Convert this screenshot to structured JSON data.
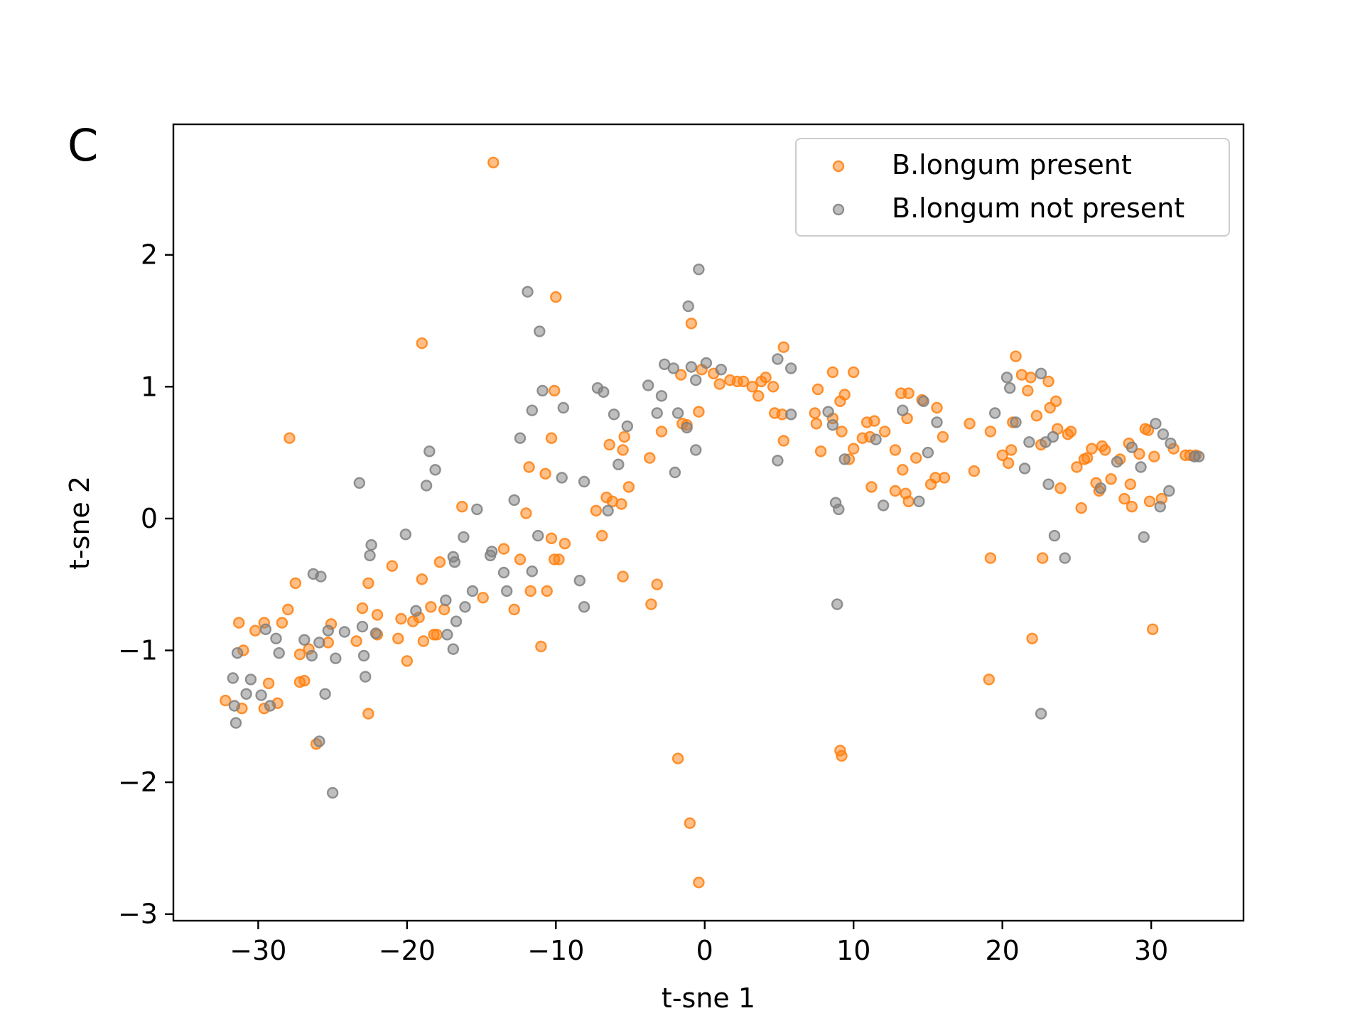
{
  "panel_label": "C",
  "chart_data": {
    "type": "scatter",
    "title": "",
    "xlabel": "t-sne 1",
    "ylabel": "t-sne 2",
    "xlim": [
      -35.7,
      36.2
    ],
    "ylim": [
      -3.05,
      2.99
    ],
    "xticks": [
      -30,
      -20,
      -10,
      0,
      10,
      20,
      30
    ],
    "xtick_labels": [
      "−30",
      "−20",
      "−10",
      "0",
      "10",
      "20",
      "30"
    ],
    "yticks": [
      -3,
      -2,
      -1,
      0,
      1,
      2
    ],
    "ytick_labels": [
      "−3",
      "−2",
      "−1",
      "0",
      "1",
      "2"
    ],
    "grid": false,
    "legend_position": "top-right",
    "series": [
      {
        "name": "B.longum present",
        "color": "#ff7f0e",
        "points": [
          [
            -14.2,
            2.7
          ],
          [
            -19.0,
            1.33
          ],
          [
            -10.0,
            1.68
          ],
          [
            -10.1,
            0.97
          ],
          [
            -0.9,
            1.48
          ],
          [
            -27.9,
            0.61
          ],
          [
            -27.5,
            -0.49
          ],
          [
            -28.0,
            -0.69
          ],
          [
            -28.4,
            -0.79
          ],
          [
            -29.6,
            -0.79
          ],
          [
            -30.2,
            -0.85
          ],
          [
            -31.3,
            -0.79
          ],
          [
            -31.0,
            -1.0
          ],
          [
            -27.2,
            -1.03
          ],
          [
            -26.6,
            -0.99
          ],
          [
            -26.9,
            -1.23
          ],
          [
            -27.2,
            -1.24
          ],
          [
            -29.6,
            -1.44
          ],
          [
            -29.3,
            -1.25
          ],
          [
            -28.7,
            -1.4
          ],
          [
            -31.1,
            -1.44
          ],
          [
            -32.2,
            -1.38
          ],
          [
            -26.1,
            -1.71
          ],
          [
            -23.4,
            -0.93
          ],
          [
            -23.0,
            -0.68
          ],
          [
            -22.6,
            -0.49
          ],
          [
            -22.0,
            -0.73
          ],
          [
            -22.0,
            -0.88
          ],
          [
            -22.6,
            -1.48
          ],
          [
            -25.1,
            -0.8
          ],
          [
            -25.3,
            -0.94
          ],
          [
            -21.0,
            -0.36
          ],
          [
            -20.6,
            -0.91
          ],
          [
            -20.0,
            -1.08
          ],
          [
            -19.6,
            -0.78
          ],
          [
            -19.0,
            -0.46
          ],
          [
            -18.9,
            -0.93
          ],
          [
            -18.4,
            -0.67
          ],
          [
            -18.2,
            -0.88
          ],
          [
            -17.8,
            -0.33
          ],
          [
            -17.5,
            -0.69
          ],
          [
            -18.0,
            -0.88
          ],
          [
            -20.4,
            -0.76
          ],
          [
            -19.2,
            -0.75
          ],
          [
            -16.3,
            0.09
          ],
          [
            -14.9,
            -0.6
          ],
          [
            -13.5,
            -0.23
          ],
          [
            -12.8,
            -0.69
          ],
          [
            -12.4,
            -0.31
          ],
          [
            -12.0,
            0.04
          ],
          [
            -11.8,
            0.39
          ],
          [
            -11.7,
            -0.55
          ],
          [
            -10.7,
            0.34
          ],
          [
            -10.3,
            0.61
          ],
          [
            -10.3,
            -0.15
          ],
          [
            -10.1,
            -0.31
          ],
          [
            -9.8,
            -0.31
          ],
          [
            -9.4,
            -0.19
          ],
          [
            -10.6,
            -0.55
          ],
          [
            -11.0,
            -0.97
          ],
          [
            -7.3,
            0.06
          ],
          [
            -6.9,
            -0.13
          ],
          [
            -6.6,
            0.16
          ],
          [
            -6.2,
            0.13
          ],
          [
            -6.4,
            0.56
          ],
          [
            -5.6,
            0.11
          ],
          [
            -5.5,
            0.52
          ],
          [
            -5.4,
            0.62
          ],
          [
            -5.1,
            0.24
          ],
          [
            -5.5,
            -0.44
          ],
          [
            -3.7,
            0.46
          ],
          [
            -3.2,
            -0.5
          ],
          [
            -3.6,
            -0.65
          ],
          [
            -2.9,
            0.66
          ],
          [
            -1.6,
            1.09
          ],
          [
            -1.5,
            0.72
          ],
          [
            -1.2,
            0.71
          ],
          [
            -0.4,
            0.81
          ],
          [
            -0.2,
            1.13
          ],
          [
            0.6,
            1.1
          ],
          [
            1.0,
            1.02
          ],
          [
            1.7,
            1.05
          ],
          [
            2.2,
            1.04
          ],
          [
            2.6,
            1.04
          ],
          [
            3.2,
            1.0
          ],
          [
            3.6,
            0.93
          ],
          [
            3.8,
            1.04
          ],
          [
            4.1,
            1.07
          ],
          [
            4.6,
            1.0
          ],
          [
            4.7,
            0.8
          ],
          [
            5.2,
            0.79
          ],
          [
            5.3,
            0.59
          ],
          [
            5.3,
            1.3
          ],
          [
            7.4,
            0.8
          ],
          [
            7.5,
            0.72
          ],
          [
            7.6,
            0.98
          ],
          [
            7.8,
            0.51
          ],
          [
            8.6,
            1.11
          ],
          [
            8.6,
            0.76
          ],
          [
            9.1,
            0.89
          ],
          [
            9.2,
            0.66
          ],
          [
            9.4,
            0.94
          ],
          [
            9.7,
            0.45
          ],
          [
            10.0,
            0.53
          ],
          [
            10.0,
            1.11
          ],
          [
            10.6,
            0.61
          ],
          [
            10.9,
            0.73
          ],
          [
            11.1,
            0.62
          ],
          [
            11.4,
            0.74
          ],
          [
            11.2,
            0.24
          ],
          [
            12.1,
            0.66
          ],
          [
            12.8,
            0.52
          ],
          [
            12.8,
            0.21
          ],
          [
            13.2,
            0.95
          ],
          [
            13.7,
            0.95
          ],
          [
            13.6,
            0.76
          ],
          [
            13.3,
            0.37
          ],
          [
            13.5,
            0.19
          ],
          [
            13.7,
            0.13
          ],
          [
            14.2,
            0.46
          ],
          [
            14.6,
            0.9
          ],
          [
            15.2,
            0.26
          ],
          [
            15.5,
            0.31
          ],
          [
            15.6,
            0.84
          ],
          [
            16.1,
            0.31
          ],
          [
            16.0,
            0.62
          ],
          [
            18.1,
            0.36
          ],
          [
            17.8,
            0.72
          ],
          [
            19.2,
            0.66
          ],
          [
            19.2,
            -0.3
          ],
          [
            19.1,
            -1.22
          ],
          [
            20.0,
            0.48
          ],
          [
            20.4,
            0.42
          ],
          [
            20.6,
            0.52
          ],
          [
            20.7,
            0.73
          ],
          [
            20.9,
            1.23
          ],
          [
            21.3,
            1.09
          ],
          [
            21.7,
            0.97
          ],
          [
            21.9,
            1.07
          ],
          [
            22.3,
            0.78
          ],
          [
            22.6,
            0.56
          ],
          [
            22.7,
            -0.3
          ],
          [
            22.0,
            -0.91
          ],
          [
            23.1,
            1.04
          ],
          [
            23.2,
            0.84
          ],
          [
            23.6,
            0.89
          ],
          [
            23.7,
            0.68
          ],
          [
            23.9,
            0.23
          ],
          [
            24.4,
            0.64
          ],
          [
            24.6,
            0.66
          ],
          [
            25.0,
            0.39
          ],
          [
            25.3,
            0.08
          ],
          [
            25.5,
            0.45
          ],
          [
            25.7,
            0.46
          ],
          [
            26.0,
            0.53
          ],
          [
            26.3,
            0.27
          ],
          [
            26.5,
            0.21
          ],
          [
            26.7,
            0.55
          ],
          [
            26.9,
            0.52
          ],
          [
            27.3,
            0.3
          ],
          [
            27.9,
            0.45
          ],
          [
            28.2,
            0.15
          ],
          [
            28.5,
            0.57
          ],
          [
            28.7,
            0.09
          ],
          [
            28.6,
            0.26
          ],
          [
            29.2,
            0.49
          ],
          [
            29.6,
            0.68
          ],
          [
            29.8,
            0.67
          ],
          [
            29.9,
            0.13
          ],
          [
            30.2,
            0.47
          ],
          [
            30.7,
            0.15
          ],
          [
            30.1,
            -0.84
          ],
          [
            31.5,
            0.53
          ],
          [
            32.3,
            0.48
          ],
          [
            32.6,
            0.48
          ],
          [
            33.0,
            0.48
          ],
          [
            -1.8,
            -1.82
          ],
          [
            -1.0,
            -2.31
          ],
          [
            -0.4,
            -2.76
          ],
          [
            9.1,
            -1.76
          ],
          [
            9.2,
            -1.8
          ]
        ]
      },
      {
        "name": "B.longum not present",
        "color": "#7f7f7f",
        "points": [
          [
            -0.4,
            1.89
          ],
          [
            -11.9,
            1.72
          ],
          [
            -11.1,
            1.42
          ],
          [
            -1.1,
            1.61
          ],
          [
            -23.2,
            0.27
          ],
          [
            -26.3,
            -0.42
          ],
          [
            -25.8,
            -0.44
          ],
          [
            -26.9,
            -0.92
          ],
          [
            -26.4,
            -1.04
          ],
          [
            -25.9,
            -0.94
          ],
          [
            -25.3,
            -0.85
          ],
          [
            -24.8,
            -1.06
          ],
          [
            -24.2,
            -0.86
          ],
          [
            -23.0,
            -0.82
          ],
          [
            -22.9,
            -1.04
          ],
          [
            -22.8,
            -1.2
          ],
          [
            -22.5,
            -0.28
          ],
          [
            -22.4,
            -0.2
          ],
          [
            -22.1,
            -0.87
          ],
          [
            -28.8,
            -0.91
          ],
          [
            -28.6,
            -1.02
          ],
          [
            -29.5,
            -0.84
          ],
          [
            -30.5,
            -1.22
          ],
          [
            -30.8,
            -1.33
          ],
          [
            -29.8,
            -1.34
          ],
          [
            -29.2,
            -1.42
          ],
          [
            -31.4,
            -1.02
          ],
          [
            -31.7,
            -1.21
          ],
          [
            -31.6,
            -1.42
          ],
          [
            -31.5,
            -1.55
          ],
          [
            -25.5,
            -1.33
          ],
          [
            -25.9,
            -1.69
          ],
          [
            -25.0,
            -2.08
          ],
          [
            -20.1,
            -0.12
          ],
          [
            -19.4,
            -0.7
          ],
          [
            -18.5,
            0.51
          ],
          [
            -18.1,
            0.37
          ],
          [
            -18.7,
            0.25
          ],
          [
            -17.4,
            -0.62
          ],
          [
            -17.3,
            -0.88
          ],
          [
            -16.8,
            -0.33
          ],
          [
            -16.9,
            -0.29
          ],
          [
            -16.7,
            -0.78
          ],
          [
            -16.9,
            -0.99
          ],
          [
            -16.2,
            -0.14
          ],
          [
            -16.1,
            -0.67
          ],
          [
            -15.6,
            -0.55
          ],
          [
            -15.3,
            0.07
          ],
          [
            -14.3,
            -0.25
          ],
          [
            -14.4,
            -0.28
          ],
          [
            -13.5,
            -0.41
          ],
          [
            -13.3,
            -0.55
          ],
          [
            -12.8,
            0.14
          ],
          [
            -12.4,
            0.61
          ],
          [
            -11.6,
            0.82
          ],
          [
            -11.6,
            -0.4
          ],
          [
            -11.2,
            -0.13
          ],
          [
            -10.9,
            0.97
          ],
          [
            -9.5,
            0.84
          ],
          [
            -9.6,
            0.31
          ],
          [
            -8.4,
            -0.47
          ],
          [
            -8.1,
            0.28
          ],
          [
            -8.1,
            -0.67
          ],
          [
            -7.2,
            0.99
          ],
          [
            -6.8,
            0.96
          ],
          [
            -6.5,
            0.06
          ],
          [
            -6.1,
            0.79
          ],
          [
            -5.8,
            0.41
          ],
          [
            -5.2,
            0.7
          ],
          [
            -3.8,
            1.01
          ],
          [
            -3.2,
            0.8
          ],
          [
            -2.9,
            0.93
          ],
          [
            -2.7,
            1.17
          ],
          [
            -2.1,
            1.14
          ],
          [
            -2.0,
            0.35
          ],
          [
            -1.8,
            0.8
          ],
          [
            -1.2,
            0.69
          ],
          [
            -0.9,
            1.15
          ],
          [
            -0.6,
            1.05
          ],
          [
            -0.6,
            0.52
          ],
          [
            0.1,
            1.18
          ],
          [
            1.1,
            1.13
          ],
          [
            4.9,
            1.21
          ],
          [
            4.9,
            0.44
          ],
          [
            5.8,
            1.14
          ],
          [
            5.8,
            0.79
          ],
          [
            8.3,
            0.81
          ],
          [
            8.6,
            0.71
          ],
          [
            8.8,
            0.12
          ],
          [
            9.0,
            0.07
          ],
          [
            8.9,
            -0.65
          ],
          [
            9.4,
            0.45
          ],
          [
            11.5,
            0.6
          ],
          [
            12.0,
            0.1
          ],
          [
            13.3,
            0.82
          ],
          [
            14.4,
            0.13
          ],
          [
            14.7,
            0.89
          ],
          [
            15.0,
            0.5
          ],
          [
            15.6,
            0.73
          ],
          [
            19.5,
            0.8
          ],
          [
            20.3,
            1.07
          ],
          [
            20.5,
            0.99
          ],
          [
            20.9,
            0.73
          ],
          [
            21.5,
            0.38
          ],
          [
            21.8,
            0.58
          ],
          [
            22.6,
            1.1
          ],
          [
            22.9,
            0.58
          ],
          [
            23.1,
            0.26
          ],
          [
            23.4,
            0.62
          ],
          [
            23.5,
            -0.13
          ],
          [
            24.2,
            -0.3
          ],
          [
            22.6,
            -1.48
          ],
          [
            26.6,
            0.23
          ],
          [
            27.7,
            0.43
          ],
          [
            28.7,
            0.54
          ],
          [
            29.5,
            -0.14
          ],
          [
            29.3,
            0.39
          ],
          [
            30.3,
            0.72
          ],
          [
            30.6,
            0.09
          ],
          [
            30.8,
            0.64
          ],
          [
            31.3,
            0.57
          ],
          [
            31.2,
            0.21
          ],
          [
            32.9,
            0.47
          ],
          [
            33.2,
            0.47
          ]
        ]
      }
    ]
  }
}
